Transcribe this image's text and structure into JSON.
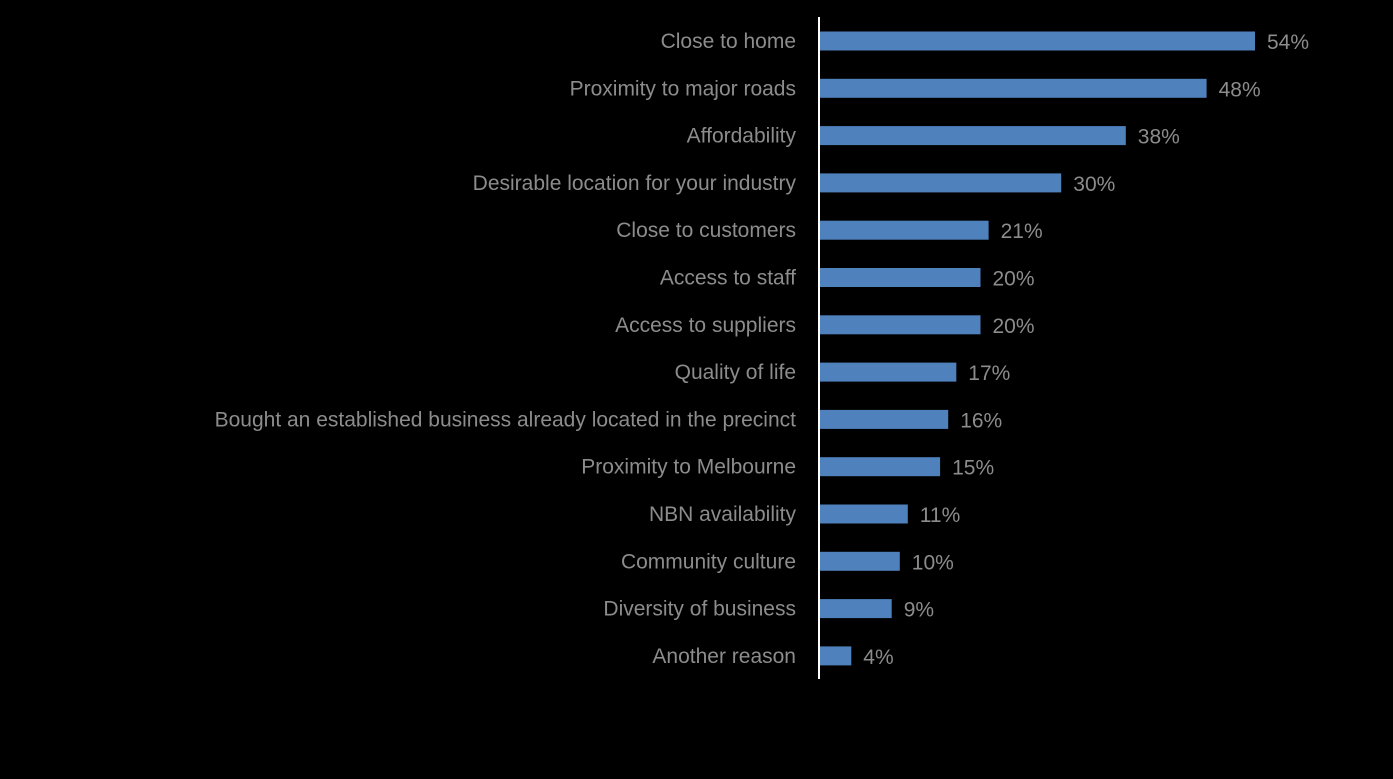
{
  "colors": {
    "background": "#000000",
    "bar": "#4F81BD",
    "label_text": "#8C8C8C",
    "axis_line": "#FFFFFF"
  },
  "chart_data": {
    "type": "bar",
    "orientation": "horizontal",
    "categories": [
      "Close to home",
      "Proximity to major roads",
      "Affordability",
      "Desirable location for your industry",
      "Close to customers",
      "Access to staff",
      "Access to suppliers",
      "Quality of life",
      "Bought an established business already located in the precinct",
      "Proximity to Melbourne",
      "NBN availability",
      "Community culture",
      "Diversity of business",
      "Another reason"
    ],
    "values": [
      54,
      48,
      38,
      30,
      21,
      20,
      20,
      17,
      16,
      15,
      11,
      10,
      9,
      4
    ],
    "data_labels": [
      "54%",
      "48%",
      "38%",
      "30%",
      "21%",
      "20%",
      "20%",
      "17%",
      "16%",
      "15%",
      "11%",
      "10%",
      "9%",
      "4%"
    ],
    "title": "",
    "xlabel": "",
    "ylabel": "",
    "xlim": [
      0,
      60
    ],
    "grid": false,
    "legend": "none"
  }
}
